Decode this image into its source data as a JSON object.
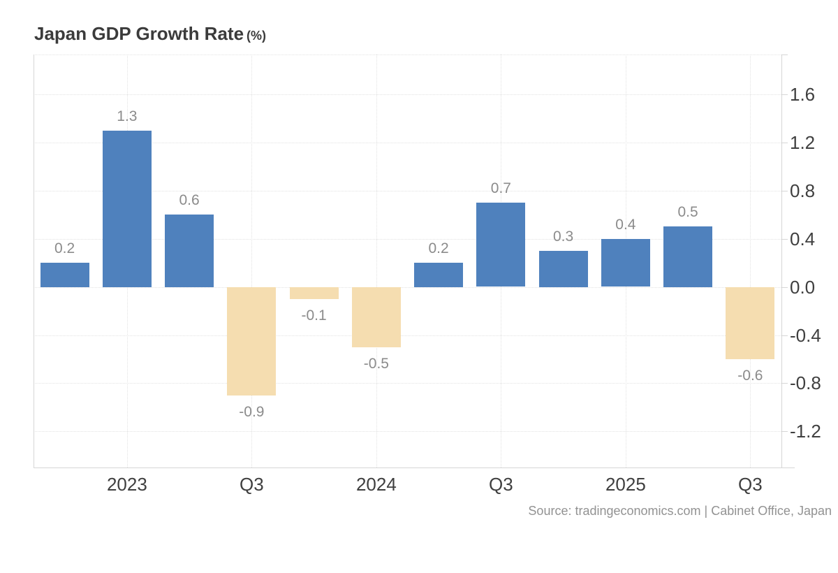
{
  "chart_data": {
    "type": "bar",
    "title": "Japan GDP Growth Rate",
    "title_suffix": "(%)",
    "values": [
      0.2,
      1.3,
      0.6,
      -0.9,
      -0.1,
      -0.5,
      0.2,
      0.7,
      0.3,
      0.4,
      0.5,
      -0.6
    ],
    "bar_value_labels": [
      "0.2",
      "1.3",
      "0.6",
      "-0.9",
      "-0.1",
      "-0.5",
      "0.2",
      "0.7",
      "0.3",
      "0.4",
      "0.5",
      "-0.6"
    ],
    "x_tick_labels": [
      {
        "label": "2023",
        "bar_index": 1
      },
      {
        "label": "Q3",
        "bar_index": 3
      },
      {
        "label": "2024",
        "bar_index": 5
      },
      {
        "label": "Q3",
        "bar_index": 7
      },
      {
        "label": "2025",
        "bar_index": 9
      },
      {
        "label": "Q3",
        "bar_index": 11
      }
    ],
    "y_tick_labels": [
      "1.6",
      "1.2",
      "0.8",
      "0.4",
      "0.0",
      "-0.4",
      "-0.8",
      "-1.2"
    ],
    "y_tick_values": [
      1.6,
      1.2,
      0.8,
      0.4,
      0.0,
      -0.4,
      -0.8,
      -1.2
    ],
    "ylim": [
      -1.5,
      1.93
    ],
    "grid": true,
    "legend_position": "none",
    "colors": {
      "positive_bar": "#4f81bd",
      "negative_bar": "#f5ddb0",
      "bar_value_label": "#8b8b8b",
      "axis_tick_label": "#3f3f3f",
      "gridline": "#e2e2e2",
      "axis_line": "#d6d6d6",
      "title": "#3b3b3b",
      "source_text": "#929292"
    },
    "source": "Source: tradingeconomics.com | Cabinet Office, Japan"
  }
}
